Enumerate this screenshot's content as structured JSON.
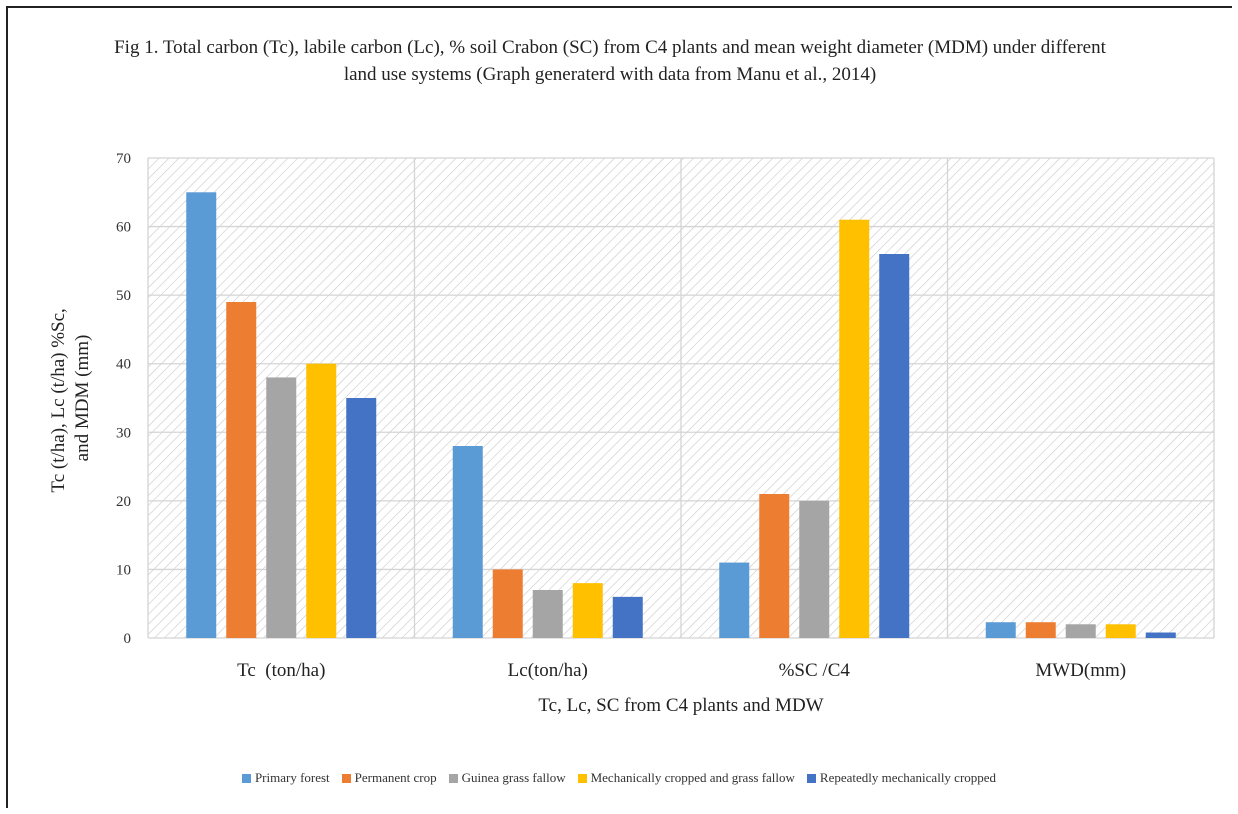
{
  "chart_data": {
    "type": "bar",
    "title": "Fig 1. Total carbon (Tc), labile carbon (Lc), % soil Crabon (SC) from C4 plants and mean weight diameter (MDM) under different land use systems (Graph generaterd with data from Manu et al., 2014)",
    "xlabel": "Tc, Lc, SC from C4 plants and MDW",
    "ylabel": "Tc (t/ha), Lc (t/ha) %Sc, and MDM (mm)",
    "ylim": [
      0,
      70
    ],
    "yticks": [
      "0",
      "10",
      "20",
      "30",
      "40",
      "50",
      "60",
      "70"
    ],
    "grid": true,
    "legend_position": "bottom",
    "categories": [
      "Tc  (ton/ha)",
      "Lc(ton/ha)",
      "%SC /C4",
      "MWD(mm)"
    ],
    "series": [
      {
        "name": "Primary forest",
        "color": "#5b9bd5",
        "values": [
          65,
          28,
          11,
          2.3
        ]
      },
      {
        "name": "Permanent crop",
        "color": "#ed7d31",
        "values": [
          49,
          10,
          21,
          2.3
        ]
      },
      {
        "name": "Guinea grass fallow",
        "color": "#a5a5a5",
        "values": [
          38,
          7,
          20,
          2.0
        ]
      },
      {
        "name": "Mechanically cropped and grass fallow",
        "color": "#ffc000",
        "values": [
          40,
          8,
          61,
          2.0
        ]
      },
      {
        "name": "Repeatedly mechanically cropped",
        "color": "#4472c4",
        "values": [
          35,
          6,
          56,
          0.8
        ]
      }
    ]
  }
}
